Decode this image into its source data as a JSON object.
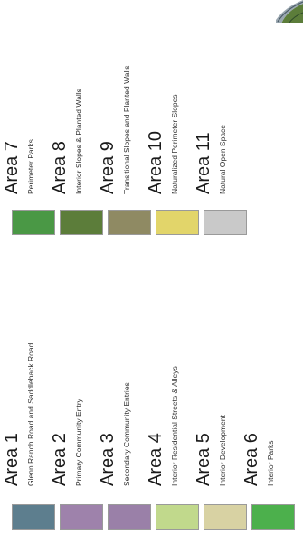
{
  "legend": {
    "left_column": [
      {
        "title": "Area 1",
        "description": "Glenn Ranch Road and Saddleback Road",
        "color": "#5d7e8e"
      },
      {
        "title": "Area 2",
        "description": "Primary Community Entry",
        "color": "#9e82ab"
      },
      {
        "title": "Area 3",
        "description": "Secondary Community Entries",
        "color": "#9a80a8"
      },
      {
        "title": "Area 4",
        "description": "Interior Residential Streets & Alleys",
        "color": "#c1d98c"
      },
      {
        "title": "Area 5",
        "description": "Interior Development",
        "color": "#d8d2a3"
      },
      {
        "title": "Area 6",
        "description": "Interior Parks",
        "color": "#4cb04c"
      }
    ],
    "right_column": [
      {
        "title": "Area 7",
        "description": "Perimeter Parks",
        "color": "#4a9845"
      },
      {
        "title": "Area 8",
        "description": "Interior Slopes & Planted Walls",
        "color": "#5c7d3a"
      },
      {
        "title": "Area 9",
        "description": "Transitional Slopes and Planted Walls",
        "color": "#8f8a63"
      },
      {
        "title": "Area 10",
        "description": "Naturalized Perimeter Slopes",
        "color": "#e2d56a"
      },
      {
        "title": "Area 11",
        "description": "Natural Open Space",
        "color": "#c9c9c9"
      }
    ]
  }
}
